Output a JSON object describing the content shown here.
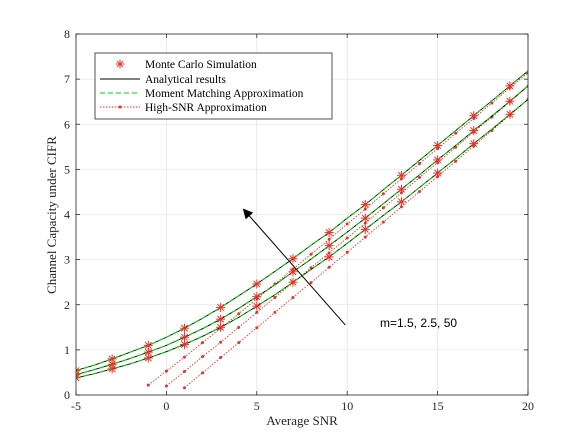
{
  "chart_data": {
    "type": "line",
    "xlabel": "Average SNR",
    "ylabel": "Channel Capacity under CIFR",
    "xlim": [
      -5,
      20
    ],
    "ylim": [
      0,
      8
    ],
    "xticks": [
      -5,
      0,
      5,
      10,
      15,
      20
    ],
    "yticks": [
      0,
      1,
      2,
      3,
      4,
      5,
      6,
      7,
      8
    ],
    "grid": true,
    "legend_position": "top-left",
    "legend": [
      {
        "label": "Monte Carlo Simulation",
        "style": "asterisk",
        "color": "#e8312b"
      },
      {
        "label": "Analytical results",
        "style": "solid",
        "color": "#000000"
      },
      {
        "label": "Moment Matching Approximation",
        "style": "dashed",
        "color": "#00d100"
      },
      {
        "label": "High-SNR Approximation",
        "style": "dotted-dot",
        "color": "#e8312b"
      }
    ],
    "annotation": {
      "text": "m=1.5, 2.5, 50",
      "arrow_from": [
        9.9,
        1.55
      ],
      "arrow_to": [
        4.3,
        4.1
      ]
    },
    "series": [
      {
        "m": 50,
        "analytical": {
          "x": [
            -5,
            -4,
            -3,
            -2,
            -1,
            0,
            1,
            2,
            3,
            4,
            5,
            6,
            7,
            8,
            9,
            10,
            11,
            12,
            13,
            14,
            15,
            16,
            17,
            18,
            19,
            20
          ],
          "y": [
            0.54,
            0.66,
            0.8,
            0.95,
            1.1,
            1.28,
            1.48,
            1.7,
            1.94,
            2.2,
            2.46,
            2.74,
            3.02,
            3.32,
            3.6,
            3.92,
            4.22,
            4.55,
            4.87,
            5.2,
            5.53,
            5.86,
            6.19,
            6.52,
            6.85,
            7.18
          ]
        },
        "monte_carlo": {
          "x": [
            -5,
            -3,
            -1,
            1,
            3,
            5,
            7,
            9,
            11,
            13,
            15,
            17,
            19
          ],
          "y": [
            0.54,
            0.8,
            1.1,
            1.48,
            1.94,
            2.46,
            3.02,
            3.6,
            4.22,
            4.87,
            5.53,
            6.19,
            6.85
          ]
        },
        "high_snr": {
          "x": [
            -1,
            0,
            1,
            2,
            3,
            4,
            5,
            6,
            7,
            8,
            9,
            10,
            11,
            12,
            13,
            14,
            15,
            16,
            17,
            18,
            19,
            20
          ],
          "y": [
            0.22,
            0.53,
            0.84,
            1.16,
            1.48,
            1.8,
            2.13,
            2.46,
            2.79,
            3.12,
            3.45,
            3.79,
            4.12,
            4.46,
            4.79,
            5.13,
            5.46,
            5.8,
            6.13,
            6.47,
            6.81,
            7.14
          ]
        }
      },
      {
        "m": 2.5,
        "analytical": {
          "x": [
            -5,
            -4,
            -3,
            -2,
            -1,
            0,
            1,
            2,
            3,
            4,
            5,
            6,
            7,
            8,
            9,
            10,
            11,
            12,
            13,
            14,
            15,
            16,
            17,
            18,
            19,
            20
          ],
          "y": [
            0.45,
            0.56,
            0.68,
            0.81,
            0.95,
            1.1,
            1.28,
            1.47,
            1.68,
            1.92,
            2.18,
            2.44,
            2.73,
            3.01,
            3.31,
            3.61,
            3.92,
            4.24,
            4.56,
            4.88,
            5.21,
            5.53,
            5.86,
            6.18,
            6.51,
            6.85
          ]
        },
        "monte_carlo": {
          "x": [
            -5,
            -3,
            -1,
            1,
            3,
            5,
            7,
            9,
            11,
            13,
            15,
            17,
            19
          ],
          "y": [
            0.45,
            0.68,
            0.95,
            1.28,
            1.68,
            2.18,
            2.73,
            3.31,
            3.92,
            4.56,
            5.21,
            5.86,
            6.51
          ]
        },
        "high_snr": {
          "x": [
            0,
            1,
            2,
            3,
            4,
            5,
            6,
            7,
            8,
            9,
            10,
            11,
            12,
            13,
            14,
            15,
            16,
            17,
            18,
            19,
            20
          ],
          "y": [
            0.2,
            0.52,
            0.85,
            1.17,
            1.5,
            1.83,
            2.16,
            2.49,
            2.82,
            3.15,
            3.48,
            3.81,
            4.15,
            4.48,
            4.82,
            5.15,
            5.49,
            5.83,
            6.16,
            6.5,
            6.84
          ]
        }
      },
      {
        "m": 1.5,
        "analytical": {
          "x": [
            -5,
            -4,
            -3,
            -2,
            -1,
            0,
            1,
            2,
            3,
            4,
            5,
            6,
            7,
            8,
            9,
            10,
            11,
            12,
            13,
            14,
            15,
            16,
            17,
            18,
            19,
            20
          ],
          "y": [
            0.38,
            0.47,
            0.58,
            0.69,
            0.82,
            0.96,
            1.12,
            1.3,
            1.5,
            1.72,
            1.97,
            2.22,
            2.5,
            2.78,
            3.06,
            3.36,
            3.67,
            3.98,
            4.28,
            4.6,
            4.92,
            5.24,
            5.57,
            5.89,
            6.22,
            6.55
          ]
        },
        "monte_carlo": {
          "x": [
            -5,
            -3,
            -1,
            1,
            3,
            5,
            7,
            9,
            11,
            13,
            15,
            17,
            19
          ],
          "y": [
            0.38,
            0.58,
            0.82,
            1.12,
            1.5,
            1.97,
            2.5,
            3.06,
            3.67,
            4.28,
            4.92,
            5.57,
            6.22
          ]
        },
        "high_snr": {
          "x": [
            1,
            2,
            3,
            4,
            5,
            6,
            7,
            8,
            9,
            10,
            11,
            12,
            13,
            14,
            15,
            16,
            17,
            18,
            19,
            20
          ],
          "y": [
            0.16,
            0.49,
            0.83,
            1.16,
            1.49,
            1.83,
            2.16,
            2.49,
            2.83,
            3.16,
            3.5,
            3.83,
            4.17,
            4.51,
            4.84,
            5.18,
            5.52,
            5.86,
            6.2,
            6.55
          ]
        }
      }
    ]
  }
}
